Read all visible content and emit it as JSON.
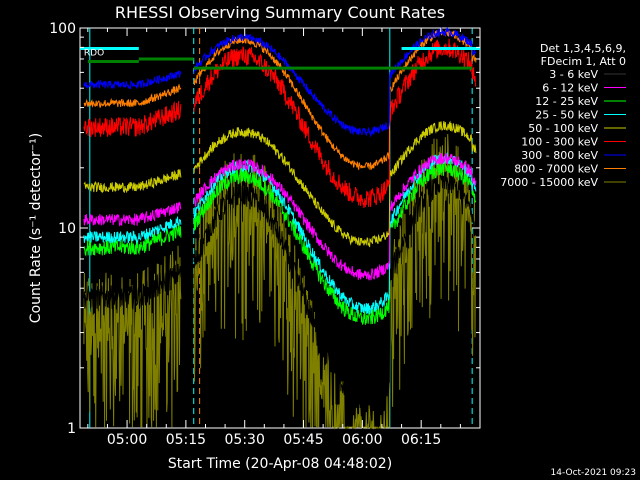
{
  "chart_data": {
    "type": "line",
    "title": "RHESSI Observing Summary Count Rates",
    "xlabel": "Start Time (20-Apr-08 04:48:02)",
    "ylabel": "Count Rate (s⁻¹ detector⁻¹)",
    "y_scale": "log",
    "ylim": [
      1,
      100
    ],
    "xlim_minutes": [
      288,
      390
    ],
    "y_ticks": [
      "1",
      "10",
      "100"
    ],
    "x_ticks": [
      "05:00",
      "05:15",
      "05:30",
      "05:45",
      "06:00",
      "06:15"
    ],
    "x_tick_minutes": [
      300,
      315,
      330,
      345,
      360,
      375
    ],
    "legend_header": [
      "Det 1,3,4,5,6,9,",
      "FDecim 1, Att 0"
    ],
    "legend": [
      {
        "label": "3 - 6 keV",
        "color": "#000000"
      },
      {
        "label": "6 - 12 keV",
        "color": "#ff00ff"
      },
      {
        "label": "12 - 25 keV",
        "color": "#00ff00"
      },
      {
        "label": "25 - 50 keV",
        "color": "#00ffff"
      },
      {
        "label": "50 - 100 keV",
        "color": "#cccc00"
      },
      {
        "label": "100 - 300 keV",
        "color": "#ff0000"
      },
      {
        "label": "300 - 800 keV",
        "color": "#0000ff"
      },
      {
        "label": "800 - 7000 keV",
        "color": "#ff8000"
      },
      {
        "label": "7000 - 15000 keV",
        "color": "#808000"
      }
    ],
    "annotation_rdo": "RDO",
    "timestamp": "14-Oct-2021 09:23",
    "night_boundaries_minutes": [
      290.5,
      317,
      367,
      388
    ],
    "saa_boundaries_minutes": [
      303,
      313.8,
      388
    ],
    "series_shape_note": "each band dips during data gaps and rises at orbit-day maxima"
  }
}
